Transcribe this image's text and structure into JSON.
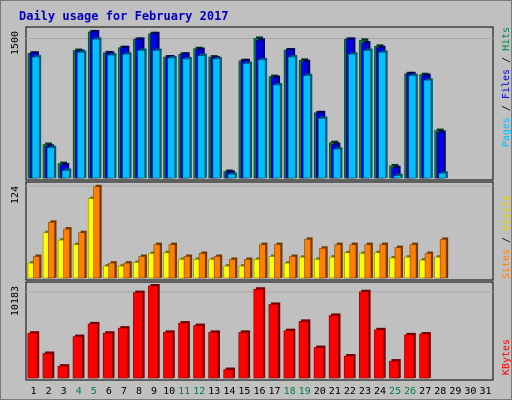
{
  "colors": {
    "background": "#c0c0c0",
    "pages": "#00c0ff",
    "files": "#0000e0",
    "hits": "#008040",
    "visits": "#ffff00",
    "sites": "#ff8000",
    "kbytes": "#ff0000",
    "weekend_day": "#008040",
    "weekday_day": "#000000",
    "title": "#0000c0"
  },
  "legend": {
    "top": {
      "pages": "Pages",
      "files": "Files",
      "hits": "Hits",
      "sep": " / "
    },
    "mid": {
      "sites": "Sites",
      "visits": "Visits",
      "sep": " / "
    },
    "bottom": {
      "kbytes": "KBytes"
    }
  },
  "chart_data": {
    "type": "bar",
    "title": "Daily usage for February 2017",
    "days": [
      "1",
      "2",
      "3",
      "4",
      "5",
      "6",
      "7",
      "8",
      "9",
      "10",
      "11",
      "12",
      "13",
      "14",
      "15",
      "16",
      "17",
      "18",
      "19",
      "20",
      "21",
      "22",
      "23",
      "24",
      "25",
      "26",
      "27",
      "28",
      "29",
      "30",
      "31"
    ],
    "weekend_days": [
      "4",
      "5",
      "11",
      "12",
      "18",
      "19",
      "25",
      "26"
    ],
    "panels": [
      {
        "id": "hits-files-pages",
        "ymax": 1500,
        "scale_max": 1580,
        "ymax_label": "1500",
        "series": [
          {
            "name": "Hits",
            "values": [
              1340,
              360,
              155,
              1370,
              1570,
              1345,
              1400,
              1490,
              1550,
              1300,
              1330,
              1390,
              1300,
              70,
              1260,
              1500,
              1090,
              1375,
              1265,
              700,
              380,
              1490,
              1480,
              1415,
              130,
              1120,
              1110,
              510,
              0,
              0,
              0
            ]
          },
          {
            "name": "Files",
            "values": [
              1340,
              340,
              140,
              1360,
              1570,
              1340,
              1400,
              1490,
              1550,
              1300,
              1330,
              1380,
              1290,
              60,
              1260,
              1480,
              1080,
              1375,
              1250,
              700,
              360,
              1490,
              1450,
              1400,
              110,
              1120,
              1100,
              490,
              0,
              0,
              0
            ]
          },
          {
            "name": "Pages",
            "values": [
              1300,
              325,
              80,
              1350,
              1490,
              1320,
              1330,
              1370,
              1370,
              1290,
              1280,
              1315,
              1280,
              40,
              1230,
              1270,
              1000,
              1300,
              1100,
              640,
              310,
              1330,
              1370,
              1350,
              25,
              1100,
              1050,
              50,
              0,
              0,
              0
            ]
          }
        ]
      },
      {
        "id": "visits-sites",
        "ymax": 124,
        "scale_max": 124,
        "ymax_label": "124",
        "series": [
          {
            "name": "Visits",
            "values": [
              20,
              61,
              51,
              45,
              107,
              16,
              16,
              21,
              33,
              34,
              25,
              25,
              25,
              16,
              16,
              25,
              29,
              20,
              28,
              25,
              28,
              34,
              33,
              34,
              27,
              28,
              24,
              28,
              0,
              0,
              0
            ]
          },
          {
            "name": "Sites",
            "values": [
              29,
              75,
              66,
              61,
              123,
              20,
              20,
              29,
              45,
              45,
              29,
              33,
              29,
              25,
              25,
              45,
              45,
              29,
              52,
              40,
              45,
              45,
              45,
              45,
              41,
              45,
              33,
              52,
              0,
              0,
              0
            ]
          }
        ]
      },
      {
        "id": "kbytes",
        "ymax": 10183,
        "scale_max": 10883,
        "ymax_label": "10183",
        "series": [
          {
            "name": "KBytes",
            "values": [
              5300,
              2900,
              1400,
              4900,
              6400,
              5300,
              5900,
              10100,
              10883,
              5400,
              6500,
              6200,
              5400,
              1000,
              5400,
              10500,
              8700,
              5600,
              6700,
              3600,
              7400,
              2600,
              10200,
              5700,
              2000,
              5100,
              5200,
              0,
              0,
              0,
              0
            ]
          }
        ]
      }
    ]
  }
}
